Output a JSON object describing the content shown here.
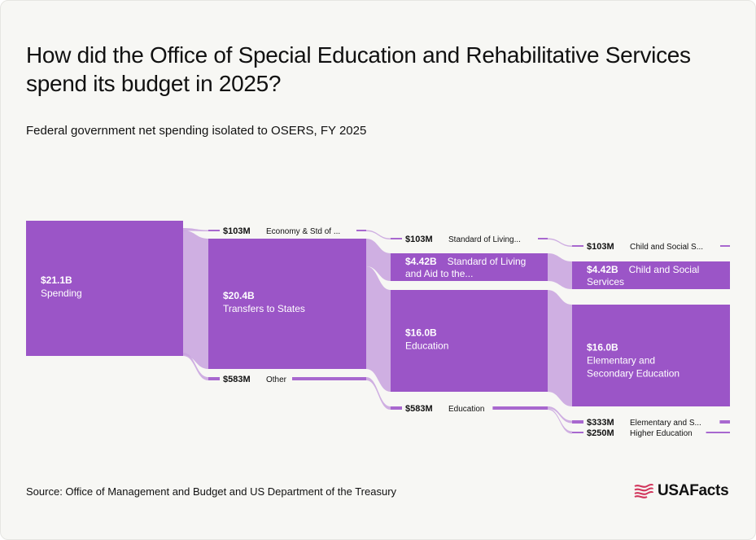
{
  "header": {
    "title": "How did the Office of Special Education and Rehabilitative Services spend its budget in 2025?",
    "subtitle": "Federal government net spending isolated to OSERS, FY 2025"
  },
  "footer": {
    "source": "Source: Office of Management and Budget and US Department of the Treasury",
    "logo_text": "USAFacts"
  },
  "colors": {
    "node": "#9b55c7",
    "link": "#c8a2de",
    "small_line": "#a868cf",
    "background": "#f7f7f4"
  },
  "chart_data": {
    "type": "sankey",
    "title": "How did the Office of Special Education and Rehabilitative Services spend its budget in 2025?",
    "subtitle": "Federal government net spending isolated to OSERS, FY 2025",
    "units": "USD",
    "nodes": [
      {
        "id": "spending",
        "level": 0,
        "value_label": "$21.1B",
        "name": "Spending",
        "value": 21.1
      },
      {
        "id": "econ",
        "level": 1,
        "value_label": "$103M",
        "name": "Economy & Std of ...",
        "value": 0.103
      },
      {
        "id": "transfers",
        "level": 1,
        "value_label": "$20.4B",
        "name": "Transfers to States",
        "value": 20.4
      },
      {
        "id": "other",
        "level": 1,
        "value_label": "$583M",
        "name": "Other",
        "value": 0.583
      },
      {
        "id": "stdliving_small",
        "level": 2,
        "value_label": "$103M",
        "name": "Standard of Living...",
        "value": 0.103
      },
      {
        "id": "stdliving",
        "level": 2,
        "value_label": "$4.42B",
        "name": "Standard of Living and Aid to the...",
        "value": 4.42
      },
      {
        "id": "education",
        "level": 2,
        "value_label": "$16.0B",
        "name": "Education",
        "value": 16.0
      },
      {
        "id": "education_small",
        "level": 2,
        "value_label": "$583M",
        "name": "Education",
        "value": 0.583
      },
      {
        "id": "childsoc_small",
        "level": 3,
        "value_label": "$103M",
        "name": "Child and Social S...",
        "value": 0.103
      },
      {
        "id": "childsoc",
        "level": 3,
        "value_label": "$4.42B",
        "name": "Child and Social Services",
        "value": 4.42
      },
      {
        "id": "elemsec",
        "level": 3,
        "value_label": "$16.0B",
        "name": "Elementary and Secondary Education",
        "value": 16.0
      },
      {
        "id": "elem_small",
        "level": 3,
        "value_label": "$333M",
        "name": "Elementary and S...",
        "value": 0.333
      },
      {
        "id": "higher",
        "level": 3,
        "value_label": "$250M",
        "name": "Higher Education",
        "value": 0.25
      }
    ],
    "links": [
      {
        "source": "spending",
        "target": "econ",
        "value": 0.103
      },
      {
        "source": "spending",
        "target": "transfers",
        "value": 20.4
      },
      {
        "source": "spending",
        "target": "other",
        "value": 0.583
      },
      {
        "source": "econ",
        "target": "stdliving_small",
        "value": 0.103
      },
      {
        "source": "transfers",
        "target": "stdliving",
        "value": 4.42
      },
      {
        "source": "transfers",
        "target": "education",
        "value": 16.0
      },
      {
        "source": "other",
        "target": "education_small",
        "value": 0.583
      },
      {
        "source": "stdliving_small",
        "target": "childsoc_small",
        "value": 0.103
      },
      {
        "source": "stdliving",
        "target": "childsoc",
        "value": 4.42
      },
      {
        "source": "education",
        "target": "elemsec",
        "value": 16.0
      },
      {
        "source": "education_small",
        "target": "elem_small",
        "value": 0.333
      },
      {
        "source": "education_small",
        "target": "higher",
        "value": 0.25
      }
    ]
  }
}
